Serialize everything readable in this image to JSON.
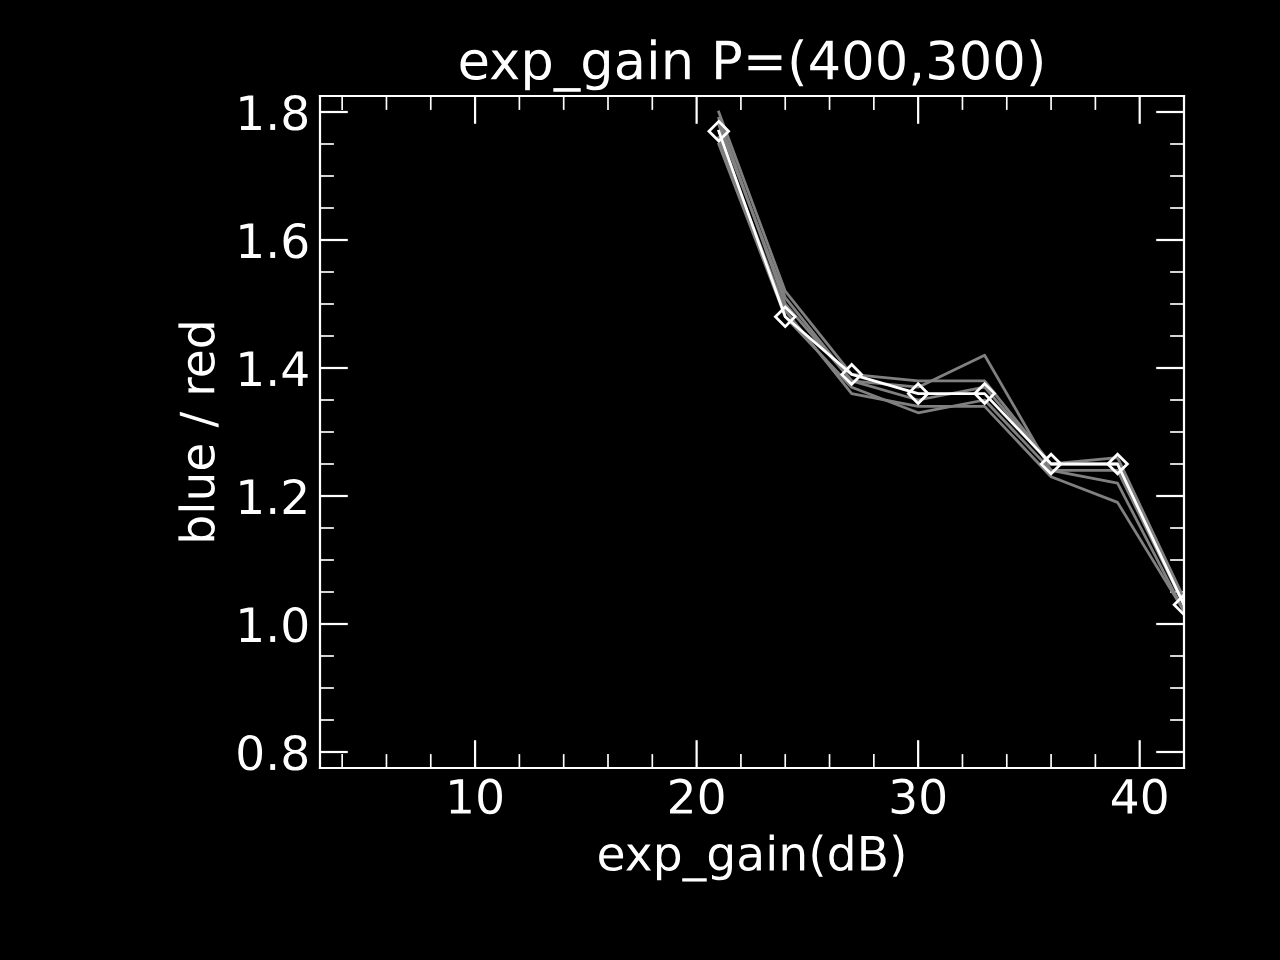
{
  "chart_data": {
    "type": "line",
    "title": "exp_gain P=(400,300)",
    "xlabel": "exp_gain(dB)",
    "ylabel": "blue / red",
    "x": [
      21,
      24,
      27,
      30,
      33,
      36,
      39,
      42
    ],
    "series": [
      {
        "color": "#808080",
        "marker": "none",
        "values": [
          1.79,
          1.5,
          1.38,
          1.37,
          1.42,
          1.24,
          1.24,
          1.03
        ]
      },
      {
        "color": "#808080",
        "marker": "none",
        "values": [
          1.76,
          1.49,
          1.36,
          1.34,
          1.34,
          1.23,
          1.19,
          1.02
        ]
      },
      {
        "color": "#808080",
        "marker": "none",
        "values": [
          1.78,
          1.51,
          1.38,
          1.35,
          1.37,
          1.25,
          1.25,
          1.03
        ]
      },
      {
        "color": "#808080",
        "marker": "none",
        "values": [
          1.75,
          1.48,
          1.37,
          1.33,
          1.35,
          1.24,
          1.22,
          1.02
        ]
      },
      {
        "color": "#808080",
        "marker": "none",
        "values": [
          1.8,
          1.52,
          1.39,
          1.38,
          1.38,
          1.25,
          1.26,
          1.04
        ]
      },
      {
        "color": "#ffffff",
        "marker": "diamond",
        "values": [
          1.77,
          1.48,
          1.39,
          1.36,
          1.36,
          1.25,
          1.25,
          1.03
        ]
      }
    ],
    "xlim": [
      3,
      42
    ],
    "xticks": [
      10,
      20,
      30,
      40
    ],
    "ylim": [
      0.775,
      1.825
    ],
    "yticks": [
      {
        "value": 0.8,
        "label": "0.8"
      },
      {
        "value": 1.0,
        "label": "1.0"
      },
      {
        "value": 1.2,
        "label": "1.2"
      },
      {
        "value": 1.4,
        "label": "1.4"
      },
      {
        "value": 1.6,
        "label": "1.6"
      },
      {
        "value": 1.8,
        "label": "1.8"
      }
    ],
    "grid": false,
    "legend": false,
    "line_style": "solid"
  }
}
